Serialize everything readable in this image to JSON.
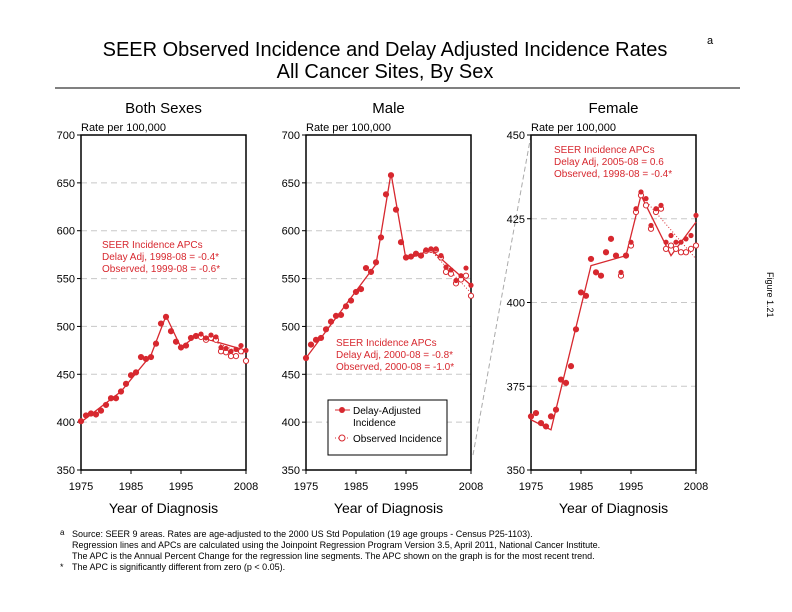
{
  "title": {
    "line1": "SEER Observed Incidence and Delay Adjusted Incidence Rates",
    "sup": "a",
    "line2": "All Cancer Sites, By Sex"
  },
  "figure_label": "Figure 1.21",
  "colors": {
    "series": "#d7282f",
    "grid": "#c8c8c8"
  },
  "legend": {
    "delay_line1": "Delay-Adjusted",
    "delay_line2": "Incidence",
    "observed": "Observed Incidence"
  },
  "footnotes": {
    "a_mark": "a",
    "a1": "Source: SEER 9 areas. Rates are age-adjusted to the 2000 US Std Population (19 age groups - Census P25-1103).",
    "a2": "Regression lines and APCs are calculated using the Joinpoint Regression Program Version 3.5, April 2011, National Cancer Institute.",
    "a3": "The APC is the Annual Percent Change for the regression line segments. The APC shown on the graph is for the most recent trend.",
    "star_mark": "*",
    "star": "The APC is significantly different from zero (p < 0.05)."
  },
  "chart_data": [
    {
      "type": "line",
      "title": "Both Sexes",
      "ylabel": "Rate per 100,000",
      "xlabel": "Year of Diagnosis",
      "ylim": [
        350,
        700
      ],
      "yticks": [
        "350",
        "400",
        "450",
        "500",
        "550",
        "600",
        "650",
        "700"
      ],
      "xticks": [
        "1975",
        "1985",
        "1995",
        "2008"
      ],
      "grid": true,
      "apc": [
        "SEER Incidence APCs",
        "Delay Adj, 1998-08 = -0.4*",
        "Observed, 1999-08 = -0.6*"
      ],
      "x": [
        1975,
        1976,
        1977,
        1978,
        1979,
        1980,
        1981,
        1982,
        1983,
        1984,
        1985,
        1986,
        1987,
        1988,
        1989,
        1990,
        1991,
        1992,
        1993,
        1994,
        1995,
        1996,
        1997,
        1998,
        1999,
        2000,
        2001,
        2002,
        2003,
        2004,
        2005,
        2006,
        2007,
        2008
      ],
      "series": [
        {
          "name": "Delay-Adjusted Incidence",
          "values": [
            401,
            407,
            409,
            408,
            412,
            418,
            425,
            425,
            432,
            440,
            449,
            452,
            468,
            466,
            468,
            482,
            503,
            510,
            495,
            484,
            478,
            480,
            488,
            490,
            492,
            488,
            491,
            489,
            478,
            477,
            474,
            476,
            480,
            475
          ]
        },
        {
          "name": "Observed Incidence",
          "values": [
            401,
            407,
            409,
            408,
            412,
            418,
            425,
            425,
            432,
            440,
            449,
            452,
            468,
            466,
            468,
            482,
            503,
            510,
            495,
            484,
            478,
            480,
            488,
            490,
            489,
            486,
            488,
            486,
            474,
            473,
            469,
            469,
            474,
            464
          ]
        }
      ],
      "trend_delay": [
        [
          1975,
          400
        ],
        [
          1983,
          432
        ],
        [
          1989,
          470
        ],
        [
          1992,
          511
        ],
        [
          1995,
          478
        ],
        [
          1998,
          490
        ],
        [
          2008,
          475
        ]
      ],
      "trend_observed": [
        [
          1999,
          490
        ],
        [
          2008,
          470
        ]
      ]
    },
    {
      "type": "line",
      "title": "Male",
      "ylabel": "Rate per 100,000",
      "xlabel": "Year of Diagnosis",
      "ylim": [
        350,
        700
      ],
      "yticks": [
        "350",
        "400",
        "450",
        "500",
        "550",
        "600",
        "650",
        "700"
      ],
      "xticks": [
        "1975",
        "1985",
        "1995",
        "2008"
      ],
      "grid": true,
      "apc": [
        "SEER Incidence APCs",
        "Delay Adj, 2000-08 = -0.8*",
        "Observed, 2000-08 = -1.0*"
      ],
      "x": [
        1975,
        1976,
        1977,
        1978,
        1979,
        1980,
        1981,
        1982,
        1983,
        1984,
        1985,
        1986,
        1987,
        1988,
        1989,
        1990,
        1991,
        1992,
        1993,
        1994,
        1995,
        1996,
        1997,
        1998,
        1999,
        2000,
        2001,
        2002,
        2003,
        2004,
        2005,
        2006,
        2007,
        2008
      ],
      "series": [
        {
          "name": "Delay-Adjusted Incidence",
          "values": [
            467,
            481,
            486,
            488,
            497,
            505,
            511,
            512,
            521,
            527,
            536,
            539,
            561,
            557,
            567,
            593,
            638,
            658,
            622,
            588,
            572,
            573,
            576,
            574,
            580,
            581,
            581,
            574,
            562,
            559,
            548,
            553,
            561,
            543
          ]
        },
        {
          "name": "Observed Incidence",
          "values": [
            467,
            481,
            486,
            488,
            497,
            505,
            511,
            512,
            521,
            527,
            536,
            539,
            561,
            557,
            567,
            593,
            638,
            658,
            622,
            588,
            572,
            573,
            576,
            574,
            579,
            580,
            580,
            572,
            557,
            555,
            545,
            549,
            553,
            532
          ]
        }
      ],
      "trend_delay": [
        [
          1975,
          467
        ],
        [
          1989,
          565
        ],
        [
          1992,
          660
        ],
        [
          1995,
          570
        ],
        [
          2000,
          580
        ],
        [
          2008,
          543
        ]
      ],
      "trend_observed": [
        [
          2000,
          579
        ],
        [
          2008,
          535
        ]
      ]
    },
    {
      "type": "line",
      "title": "Female",
      "ylabel": "Rate per 100,000",
      "xlabel": "Year of Diagnosis",
      "ylim": [
        350,
        450
      ],
      "yticks": [
        "350",
        "375",
        "400",
        "425",
        "450"
      ],
      "xticks": [
        "1975",
        "1985",
        "1995",
        "2008"
      ],
      "grid": true,
      "apc": [
        "SEER Incidence APCs",
        "Delay Adj, 2005-08 = 0.6",
        "Observed, 1998-08 = -0.4*"
      ],
      "x": [
        1975,
        1976,
        1977,
        1978,
        1979,
        1980,
        1981,
        1982,
        1983,
        1984,
        1985,
        1986,
        1987,
        1988,
        1989,
        1990,
        1991,
        1992,
        1993,
        1994,
        1995,
        1996,
        1997,
        1998,
        1999,
        2000,
        2001,
        2002,
        2003,
        2004,
        2005,
        2006,
        2007,
        2008
      ],
      "series": [
        {
          "name": "Delay-Adjusted Incidence",
          "values": [
            366,
            367,
            364,
            363,
            366,
            368,
            377,
            376,
            381,
            392,
            403,
            402,
            413,
            409,
            408,
            415,
            419,
            414,
            409,
            414,
            418,
            428,
            433,
            431,
            423,
            428,
            429,
            418,
            420,
            418,
            418,
            419,
            420,
            426
          ]
        },
        {
          "name": "Observed Incidence",
          "values": [
            366,
            367,
            364,
            363,
            366,
            368,
            377,
            376,
            381,
            392,
            403,
            402,
            413,
            409,
            408,
            415,
            419,
            414,
            408,
            414,
            417,
            427,
            432,
            429,
            422,
            427,
            428,
            416,
            417,
            416,
            415,
            415,
            416,
            417
          ]
        }
      ],
      "trend_delay": [
        [
          1975,
          365
        ],
        [
          1979,
          362
        ],
        [
          1987,
          411
        ],
        [
          1994,
          414
        ],
        [
          1997,
          432
        ],
        [
          2003,
          414
        ],
        [
          2008,
          424
        ]
      ],
      "trend_observed": [
        [
          1997,
          432
        ],
        [
          2008,
          413
        ]
      ]
    }
  ]
}
